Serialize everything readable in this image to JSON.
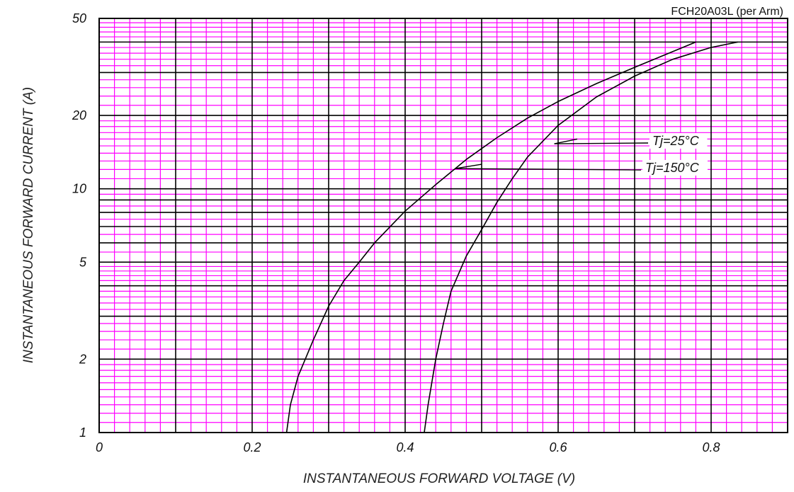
{
  "chart_data": {
    "type": "line",
    "title": "FCH20A03L (per Arm)",
    "xlabel": "INSTANTANEOUS FORWARD VOLTAGE (V)",
    "ylabel": "INSTANTANEOUS FORWARD CURRENT (A)",
    "xlim": [
      0,
      0.9
    ],
    "ylim": [
      1,
      50
    ],
    "yscale": "log",
    "grid": true,
    "grid_color": "#ff00ff",
    "x_ticks": [
      "0",
      "0.2",
      "0.4",
      "0.6",
      "0.8"
    ],
    "y_ticks": [
      "1",
      "2",
      "5",
      "10",
      "20",
      "50"
    ],
    "series": [
      {
        "name": "Tj=25°C",
        "points": [
          [
            0.425,
            1.0
          ],
          [
            0.43,
            1.3
          ],
          [
            0.44,
            2.0
          ],
          [
            0.45,
            2.8
          ],
          [
            0.46,
            3.8
          ],
          [
            0.48,
            5.3
          ],
          [
            0.5,
            6.8
          ],
          [
            0.52,
            8.8
          ],
          [
            0.54,
            11.0
          ],
          [
            0.56,
            13.5
          ],
          [
            0.6,
            18.2
          ],
          [
            0.65,
            23.8
          ],
          [
            0.7,
            29.0
          ],
          [
            0.75,
            34.0
          ],
          [
            0.8,
            38.0
          ],
          [
            0.835,
            40.0
          ]
        ]
      },
      {
        "name": "Tj=150°C",
        "points": [
          [
            0.245,
            1.0
          ],
          [
            0.25,
            1.3
          ],
          [
            0.26,
            1.7
          ],
          [
            0.28,
            2.4
          ],
          [
            0.3,
            3.3
          ],
          [
            0.32,
            4.2
          ],
          [
            0.34,
            5.0
          ],
          [
            0.36,
            6.0
          ],
          [
            0.4,
            8.1
          ],
          [
            0.44,
            10.4
          ],
          [
            0.48,
            13.2
          ],
          [
            0.52,
            16.2
          ],
          [
            0.56,
            19.5
          ],
          [
            0.6,
            22.8
          ],
          [
            0.65,
            27.0
          ],
          [
            0.7,
            31.5
          ],
          [
            0.78,
            40.0
          ]
        ]
      }
    ],
    "annotations": [
      {
        "text": "Tj=25°C",
        "series": 0
      },
      {
        "text": "Tj=150°C",
        "series": 1
      }
    ]
  }
}
